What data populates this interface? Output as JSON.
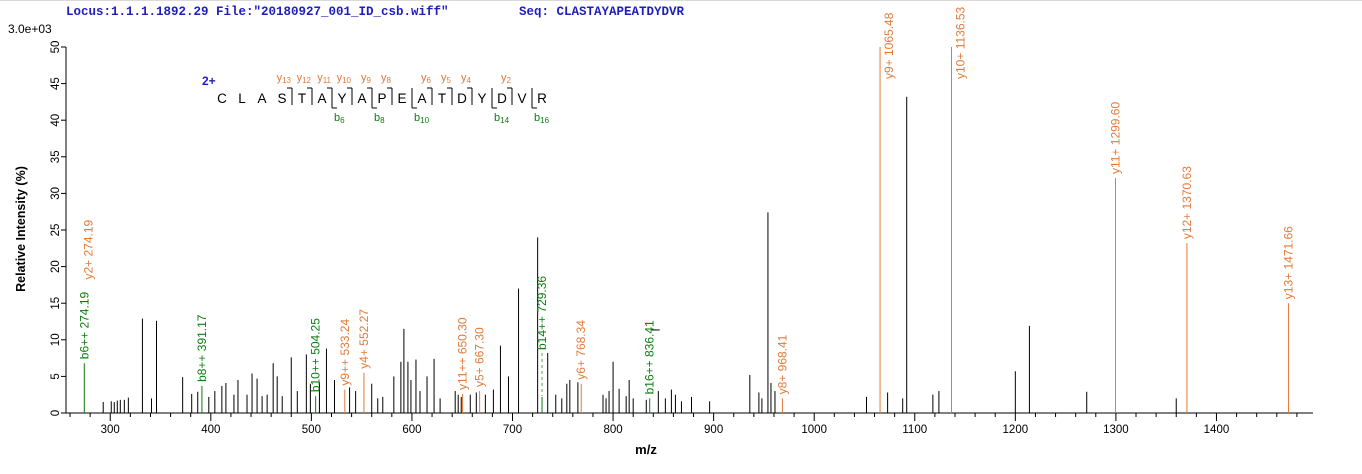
{
  "header": {
    "locus_file": "Locus:1.1.1.1892.29 File:\"20180927_001_ID_csb.wiff\"",
    "seq": "Seq: CLASTAYAPEATDYDVR"
  },
  "plot": {
    "scale_label": "3.0e+03",
    "y_axis_title": "Relative  Intensity (%)",
    "x_axis_title": "m/z"
  },
  "colors": {
    "y_ion": "#E27A3A",
    "b_ion": "#0A7D0F",
    "header_blue": "#1E1EBE",
    "peak_black": "#000000"
  },
  "peptide": {
    "charge": "2+",
    "sequence": "CLASTAYAPEATDYDVR",
    "y_sites": [
      {
        "ion": "y13",
        "after": 4
      },
      {
        "ion": "y12",
        "after": 5
      },
      {
        "ion": "y11",
        "after": 6
      },
      {
        "ion": "y10",
        "after": 7
      },
      {
        "ion": "y9",
        "after": 8
      },
      {
        "ion": "y8",
        "after": 9
      },
      {
        "ion": "y6",
        "after": 11
      },
      {
        "ion": "y5",
        "after": 12
      },
      {
        "ion": "y4",
        "after": 13
      },
      {
        "ion": "y2",
        "after": 15
      }
    ],
    "b_sites": [
      {
        "ion": "b6",
        "after": 6
      },
      {
        "ion": "b8",
        "after": 8
      },
      {
        "ion": "b10",
        "after": 10
      },
      {
        "ion": "b14",
        "after": 14
      },
      {
        "ion": "b16",
        "after": 16
      }
    ]
  },
  "chart_data": {
    "type": "bar",
    "subtype": "ms2-spectrum",
    "title": "",
    "xlabel": "m/z",
    "ylabel": "Relative  Intensity (%)",
    "absolute_intensity_scale": "3.0e+03",
    "x_range": [
      256,
      1496
    ],
    "y_range": [
      0,
      50
    ],
    "x_major_ticks": [
      300,
      400,
      500,
      600,
      700,
      800,
      900,
      1000,
      1100,
      1200,
      1300,
      1400
    ],
    "x_minor_step": 20,
    "y_tick_step": 5,
    "grid": false,
    "labeled_peaks": [
      {
        "label": "b6++ 274.19",
        "ion": "b6++",
        "mz": 274.19,
        "intensity": 6.8,
        "type": "b"
      },
      {
        "label": "y2+ 274.19",
        "ion": "y2+",
        "mz": 274.19,
        "intensity": 6.8,
        "type": "y"
      },
      {
        "label": "b8++ 391.17",
        "ion": "b8++",
        "mz": 391.17,
        "intensity": 3.7,
        "type": "b"
      },
      {
        "label": "b10++ 504.25",
        "ion": "b10++",
        "mz": 504.25,
        "intensity": 2.3,
        "type": "b"
      },
      {
        "label": "y9++ 533.24",
        "ion": "y9++",
        "mz": 533.24,
        "intensity": 3.2,
        "type": "y"
      },
      {
        "label": "y4+ 552.27",
        "ion": "y4+",
        "mz": 552.27,
        "intensity": 5.5,
        "type": "y"
      },
      {
        "label": "y11++ 650.30",
        "ion": "y11++",
        "mz": 650.3,
        "intensity": 2.6,
        "type": "y"
      },
      {
        "label": "y5+ 667.30",
        "ion": "y5+",
        "mz": 667.3,
        "intensity": 3.0,
        "type": "y"
      },
      {
        "label": "b14++ 729.36",
        "ion": "b14++",
        "mz": 729.36,
        "intensity": 2.2,
        "type": "b",
        "label_y": 349,
        "leader": "dashed"
      },
      {
        "label": "y6+ 768.34",
        "ion": "y6+",
        "mz": 768.34,
        "intensity": 4.0,
        "type": "y"
      },
      {
        "label": "b16++ 836.41",
        "ion": "b16++",
        "mz": 836.41,
        "intensity": 2.0,
        "type": "b",
        "top_tick": true
      },
      {
        "label": "y8+ 968.41",
        "ion": "y8+",
        "mz": 968.41,
        "intensity": 2.0,
        "type": "y"
      },
      {
        "label": "y9+ 1065.48",
        "ion": "y9+",
        "mz": 1065.48,
        "intensity": 50,
        "type": "y"
      },
      {
        "label": "y10+ 1136.53",
        "ion": "y10+",
        "mz": 1136.53,
        "intensity": 50,
        "type": "y"
      },
      {
        "label": "y11+ 1299.60",
        "ion": "y11+",
        "mz": 1299.6,
        "intensity": 32.1,
        "type": "y"
      },
      {
        "label": "y12+ 1370.63",
        "ion": "y12+",
        "mz": 1370.63,
        "intensity": 23.2,
        "type": "y"
      },
      {
        "label": "y13+ 1471.66",
        "ion": "y13+",
        "mz": 1471.66,
        "intensity": 15.0,
        "type": "y"
      }
    ],
    "unlabeled_peaks": [
      [
        293,
        1.5
      ],
      [
        301,
        1.6
      ],
      [
        304,
        1.5
      ],
      [
        307,
        1.7
      ],
      [
        310,
        1.8
      ],
      [
        314,
        1.8
      ],
      [
        318,
        2.1
      ],
      [
        332,
        12.9
      ],
      [
        341,
        2.0
      ],
      [
        346,
        12.6
      ],
      [
        372,
        4.9
      ],
      [
        381,
        2.6
      ],
      [
        387,
        2.9
      ],
      [
        398,
        2.2
      ],
      [
        404,
        3.0
      ],
      [
        411,
        3.7
      ],
      [
        415,
        4.1
      ],
      [
        423,
        2.5
      ],
      [
        427,
        4.5
      ],
      [
        436,
        2.5
      ],
      [
        441,
        5.4
      ],
      [
        446,
        4.7
      ],
      [
        451,
        2.3
      ],
      [
        456,
        2.5
      ],
      [
        462,
        6.8
      ],
      [
        466,
        5.0
      ],
      [
        471,
        2.3
      ],
      [
        480,
        7.6
      ],
      [
        486,
        3.0
      ],
      [
        495,
        8.0
      ],
      [
        499,
        4.0
      ],
      [
        508,
        4.2
      ],
      [
        515,
        8.8
      ],
      [
        523,
        4.5
      ],
      [
        538,
        3.5
      ],
      [
        544,
        3.0
      ],
      [
        560,
        4.0
      ],
      [
        566,
        2.0
      ],
      [
        571,
        2.2
      ],
      [
        582,
        5.0
      ],
      [
        589,
        7.0
      ],
      [
        592,
        11.5
      ],
      [
        596,
        7.0
      ],
      [
        599,
        4.5
      ],
      [
        604,
        7.3
      ],
      [
        608,
        3.0
      ],
      [
        615,
        5.0
      ],
      [
        622,
        7.4
      ],
      [
        628,
        2.0
      ],
      [
        643,
        3.0
      ],
      [
        646,
        2.5
      ],
      [
        649,
        2.2
      ],
      [
        658,
        2.5
      ],
      [
        664,
        2.8
      ],
      [
        673,
        2.5
      ],
      [
        681,
        3.2
      ],
      [
        688,
        9.2
      ],
      [
        696,
        5.0
      ],
      [
        706,
        17.0
      ],
      [
        725,
        24.0
      ],
      [
        735,
        8.2
      ],
      [
        743,
        2.5
      ],
      [
        749,
        2.0
      ],
      [
        754,
        4.0
      ],
      [
        757,
        4.5
      ],
      [
        765,
        4.2
      ],
      [
        790,
        2.5
      ],
      [
        793,
        2.0
      ],
      [
        796,
        3.0
      ],
      [
        800,
        7.0
      ],
      [
        806,
        3.3
      ],
      [
        813,
        2.3
      ],
      [
        816,
        4.5
      ],
      [
        820,
        2.0
      ],
      [
        833,
        1.8
      ],
      [
        845,
        3.0
      ],
      [
        852,
        2.0
      ],
      [
        858,
        3.2
      ],
      [
        862,
        2.5
      ],
      [
        868,
        1.6
      ],
      [
        878,
        2.2
      ],
      [
        896,
        1.6
      ],
      [
        936,
        5.2
      ],
      [
        945,
        2.8
      ],
      [
        948,
        2.0
      ],
      [
        954,
        27.4
      ],
      [
        957,
        4.1
      ],
      [
        961,
        3.0
      ],
      [
        1052,
        2.2
      ],
      [
        1073,
        2.8
      ],
      [
        1088,
        2.0
      ],
      [
        1092,
        43.2
      ],
      [
        1118,
        2.5
      ],
      [
        1124,
        3.0
      ],
      [
        1200,
        5.7
      ],
      [
        1214,
        11.9
      ],
      [
        1271,
        2.9
      ],
      [
        1360,
        2.0
      ]
    ]
  }
}
